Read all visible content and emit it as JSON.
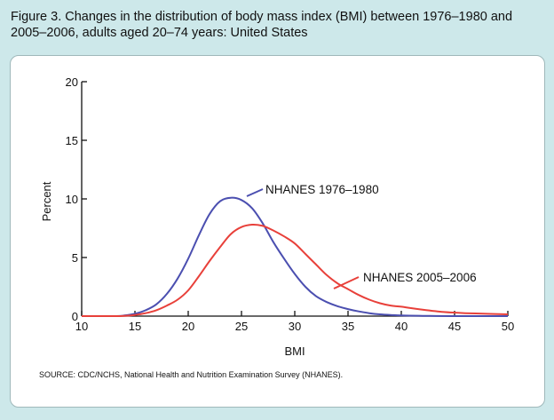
{
  "figure": {
    "title": "Figure 3. Changes in the distribution of body mass index (BMI) between 1976–1980 and 2005–2006, adults aged 20–74 years: United States",
    "source": "SOURCE: CDC/NCHS, National Health and Nutrition Examination Survey (NHANES)."
  },
  "colors": {
    "background": "#cde8ea",
    "series_1976": "#4b4fb0",
    "series_2005": "#e8403a"
  },
  "chart_data": {
    "type": "line",
    "title": "",
    "xlabel": "BMI",
    "ylabel": "Percent",
    "xlim": [
      10,
      50
    ],
    "ylim": [
      0,
      20
    ],
    "xticks": [
      10,
      15,
      20,
      25,
      30,
      35,
      40,
      45,
      50
    ],
    "yticks": [
      0,
      5,
      10,
      15,
      20
    ],
    "grid": false,
    "legend": "direct labels on lines",
    "series": [
      {
        "name": "NHANES 1976–1980",
        "x": [
          10,
          13,
          14,
          15,
          16,
          17,
          18,
          19,
          20,
          21,
          22,
          23,
          24,
          25,
          26,
          27,
          28,
          29,
          30,
          31,
          32,
          33,
          34,
          35,
          36,
          37,
          38,
          39,
          40,
          42,
          45,
          50
        ],
        "y": [
          0,
          0,
          0.05,
          0.2,
          0.5,
          1.0,
          1.9,
          3.2,
          4.9,
          6.9,
          8.7,
          9.8,
          10.1,
          9.9,
          9.2,
          7.9,
          6.3,
          4.9,
          3.6,
          2.5,
          1.7,
          1.2,
          0.85,
          0.6,
          0.4,
          0.25,
          0.15,
          0.1,
          0.05,
          0.02,
          0,
          0
        ]
      },
      {
        "name": "NHANES 2005–2006",
        "x": [
          10,
          13,
          14,
          15,
          16,
          17,
          18,
          19,
          20,
          21,
          22,
          23,
          24,
          25,
          26,
          27,
          28,
          29,
          30,
          31,
          32,
          33,
          34,
          35,
          36,
          37,
          38,
          39,
          40,
          42,
          44,
          46,
          48,
          50
        ],
        "y": [
          0,
          0,
          0.02,
          0.1,
          0.25,
          0.5,
          0.9,
          1.4,
          2.2,
          3.4,
          4.7,
          5.9,
          7.0,
          7.6,
          7.8,
          7.7,
          7.3,
          6.8,
          6.2,
          5.3,
          4.4,
          3.5,
          2.8,
          2.3,
          1.8,
          1.4,
          1.1,
          0.9,
          0.8,
          0.55,
          0.35,
          0.25,
          0.2,
          0.15
        ]
      }
    ]
  }
}
